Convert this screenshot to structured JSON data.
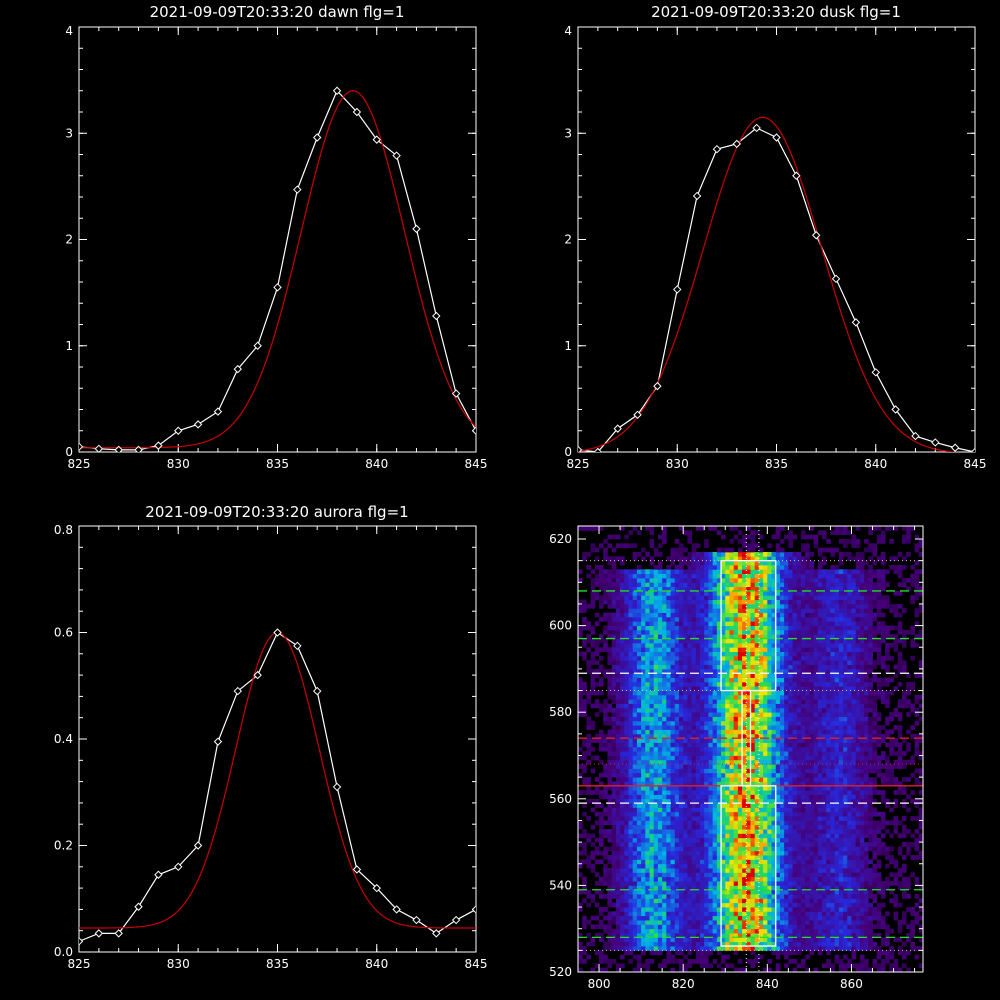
{
  "colors": {
    "background": "#000000",
    "axes": "#ffffff",
    "data": "#ffffff",
    "fit": "#cc0000",
    "green": "#22dd22",
    "red": "#dd2222",
    "white_line": "#ffffff",
    "dotted_yellow": "#cccc88"
  },
  "chart_data": [
    {
      "type": "line",
      "title": "2021-09-09T20:33:20 dawn flg=1",
      "xlim": [
        825,
        845
      ],
      "ylim": [
        0,
        4
      ],
      "xticks": [
        825,
        830,
        835,
        840,
        845
      ],
      "yticks": [
        0,
        1,
        2,
        3,
        4
      ],
      "series": [
        {
          "role": "data",
          "markers": "diamond",
          "x": [
            825,
            826,
            827,
            828,
            829,
            830,
            831,
            832,
            833,
            834,
            835,
            836,
            837,
            838,
            839,
            840,
            841,
            842,
            843,
            844,
            845
          ],
          "y": [
            0.05,
            0.03,
            0.02,
            0.02,
            0.06,
            0.2,
            0.26,
            0.38,
            0.78,
            1.0,
            1.55,
            2.47,
            2.96,
            3.4,
            3.2,
            2.94,
            2.79,
            2.1,
            1.28,
            0.55,
            0.2
          ]
        },
        {
          "role": "fit",
          "gaussian": {
            "amp": 3.36,
            "center": 838.8,
            "sigma": 2.6,
            "offset": 0.04
          }
        }
      ]
    },
    {
      "type": "line",
      "title": "2021-09-09T20:33:20 dusk flg=1",
      "xlim": [
        825,
        845
      ],
      "ylim": [
        0,
        4
      ],
      "xticks": [
        825,
        830,
        835,
        840,
        845
      ],
      "yticks": [
        0,
        1,
        2,
        3,
        4
      ],
      "series": [
        {
          "role": "data",
          "markers": "diamond",
          "x": [
            825,
            826,
            827,
            828,
            829,
            830,
            831,
            832,
            833,
            834,
            835,
            836,
            837,
            838,
            839,
            840,
            841,
            842,
            843,
            844,
            845
          ],
          "y": [
            0.02,
            0.0,
            0.22,
            0.35,
            0.62,
            1.53,
            2.41,
            2.85,
            2.9,
            3.05,
            2.96,
            2.6,
            2.04,
            1.63,
            1.22,
            0.75,
            0.4,
            0.15,
            0.09,
            0.04,
            0.0
          ]
        },
        {
          "role": "fit",
          "gaussian": {
            "amp": 3.17,
            "center": 834.3,
            "sigma": 3.0,
            "offset": -0.02
          }
        }
      ]
    },
    {
      "type": "line",
      "title": "2021-09-09T20:33:20 aurora flg=1",
      "xlim": [
        825,
        845
      ],
      "ylim": [
        0,
        0.8
      ],
      "xticks": [
        825,
        830,
        835,
        840,
        845
      ],
      "yticks": [
        0.0,
        0.2,
        0.4,
        0.6,
        0.8
      ],
      "ytick_labels": [
        "0.0",
        "0.2",
        "0.4",
        "0.6",
        "0.8"
      ],
      "series": [
        {
          "role": "data",
          "markers": "diamond",
          "x": [
            825,
            826,
            827,
            828,
            829,
            830,
            831,
            832,
            833,
            834,
            835,
            836,
            837,
            838,
            839,
            840,
            841,
            842,
            843,
            844,
            845
          ],
          "y": [
            0.02,
            0.035,
            0.035,
            0.085,
            0.145,
            0.16,
            0.2,
            0.395,
            0.49,
            0.52,
            0.6,
            0.575,
            0.49,
            0.31,
            0.155,
            0.12,
            0.08,
            0.06,
            0.035,
            0.06,
            0.08
          ]
        },
        {
          "role": "fit",
          "gaussian": {
            "amp": 0.555,
            "center": 835.0,
            "sigma": 2.1,
            "offset": 0.045
          }
        }
      ]
    },
    {
      "type": "heatmap",
      "xlim": [
        795,
        877
      ],
      "ylim": [
        520,
        623
      ],
      "xticks": [
        800,
        820,
        840,
        860
      ],
      "yticks": [
        520,
        540,
        560,
        580,
        600,
        620
      ],
      "bands": [
        {
          "center": 813,
          "width": 5,
          "y_from": 525,
          "y_to": 612,
          "intensity": 0.5
        },
        {
          "center": 835,
          "width": 6,
          "y_from": 525,
          "y_to": 616,
          "intensity": 0.95
        },
        {
          "center": 857,
          "width": 5,
          "y_from": 525,
          "y_to": 612,
          "intensity": 0.25
        }
      ],
      "boxes": [
        {
          "x0": 829,
          "x1": 842,
          "y0": 585,
          "y1": 615
        },
        {
          "x0": 829,
          "x1": 842,
          "y0": 526,
          "y1": 563
        }
      ],
      "connector": {
        "x0": 834,
        "x1": 836,
        "y0": 563,
        "y1": 585
      },
      "vertical_dotted": [
        835,
        838
      ],
      "horizontal_lines": [
        {
          "y": 615,
          "style": "dotted",
          "color": "dotted_yellow"
        },
        {
          "y": 608,
          "style": "dashed",
          "color": "green"
        },
        {
          "y": 597,
          "style": "dashed",
          "color": "green"
        },
        {
          "y": 589,
          "style": "dashed",
          "color": "white_line"
        },
        {
          "y": 585,
          "style": "dotted",
          "color": "dotted_yellow"
        },
        {
          "y": 574,
          "style": "dashed",
          "color": "red"
        },
        {
          "y": 568,
          "style": "dotted",
          "color": "red"
        },
        {
          "y": 563,
          "style": "solid",
          "color": "red"
        },
        {
          "y": 559,
          "style": "dashed",
          "color": "white_line"
        },
        {
          "y": 539,
          "style": "dashed",
          "color": "green"
        },
        {
          "y": 528,
          "style": "dashed",
          "color": "green"
        },
        {
          "y": 525,
          "style": "dotted",
          "color": "dotted_yellow"
        }
      ]
    }
  ]
}
